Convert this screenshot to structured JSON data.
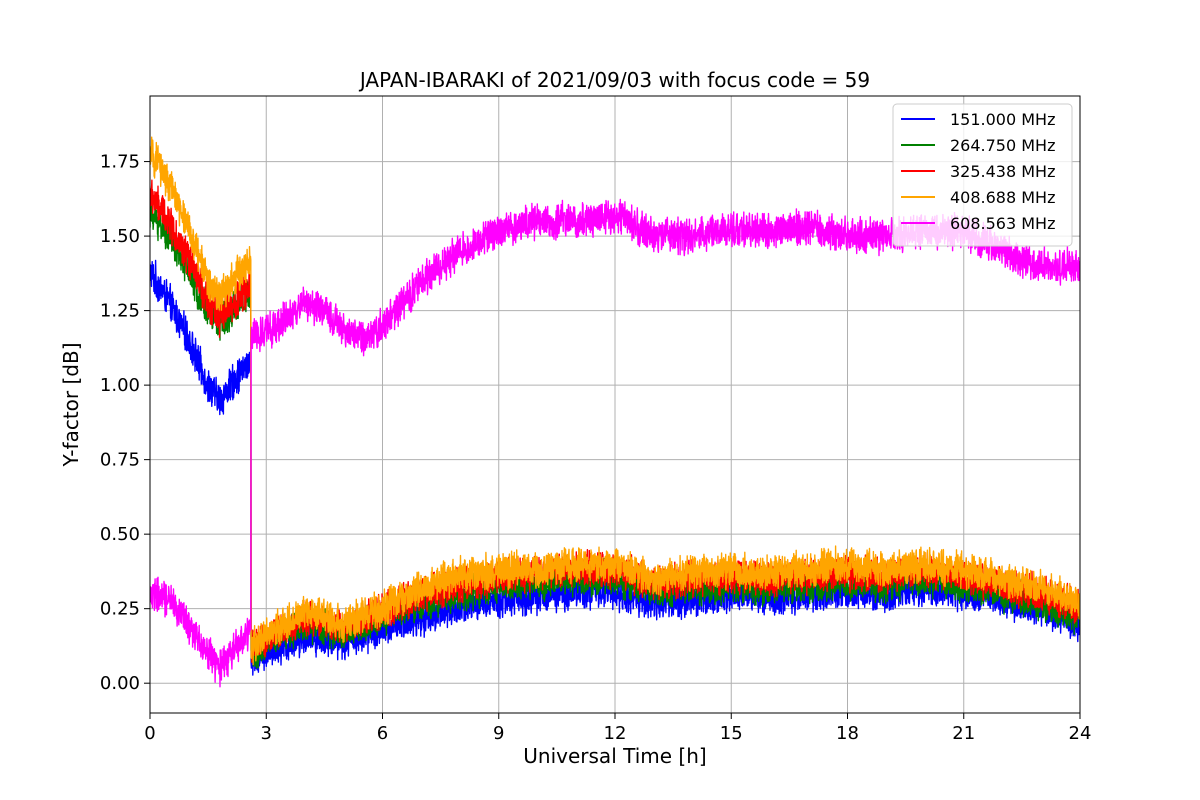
{
  "chart_data": {
    "type": "line",
    "title": "JAPAN-IBARAKI of 2021/09/03 with focus code = 59",
    "xlabel": "Universal Time [h]",
    "ylabel": "Y-factor [dB]",
    "xlim": [
      0,
      24
    ],
    "ylim": [
      -0.1,
      1.97
    ],
    "xticks": [
      0,
      3,
      6,
      9,
      12,
      15,
      18,
      21,
      24
    ],
    "xtick_labels": [
      "0",
      "3",
      "6",
      "9",
      "12",
      "15",
      "18",
      "21",
      "24"
    ],
    "yticks": [
      0.0,
      0.25,
      0.5,
      0.75,
      1.0,
      1.25,
      1.5,
      1.75
    ],
    "ytick_labels": [
      "0.00",
      "0.25",
      "0.50",
      "0.75",
      "1.00",
      "1.25",
      "1.50",
      "1.75"
    ],
    "grid": true,
    "legend_position": "top-right",
    "series": [
      {
        "name": "151.000 MHz",
        "color": "#0000ff",
        "noise": 0.05,
        "x": [
          0,
          0.5,
          1,
          1.5,
          1.8,
          2.2,
          2.6,
          2.61,
          3,
          4,
          5,
          6,
          7,
          8,
          9,
          10,
          11,
          12,
          13,
          14,
          15,
          16,
          17,
          18,
          19,
          20,
          21,
          22,
          23,
          24
        ],
        "y": [
          1.38,
          1.28,
          1.15,
          1.0,
          0.95,
          1.02,
          1.08,
          0.08,
          0.1,
          0.16,
          0.14,
          0.18,
          0.22,
          0.25,
          0.28,
          0.29,
          0.31,
          0.31,
          0.27,
          0.28,
          0.3,
          0.29,
          0.3,
          0.31,
          0.3,
          0.32,
          0.3,
          0.28,
          0.25,
          0.2
        ]
      },
      {
        "name": "264.750 MHz",
        "color": "#008000",
        "noise": 0.05,
        "x": [
          0,
          0.5,
          1,
          1.5,
          1.8,
          2.2,
          2.6,
          2.61,
          3,
          4,
          5,
          6,
          7,
          8,
          9,
          10,
          11,
          12,
          13,
          14,
          15,
          16,
          17,
          18,
          19,
          20,
          21,
          22,
          23,
          24
        ],
        "y": [
          1.58,
          1.5,
          1.38,
          1.25,
          1.2,
          1.27,
          1.3,
          0.1,
          0.13,
          0.2,
          0.17,
          0.22,
          0.27,
          0.3,
          0.33,
          0.34,
          0.35,
          0.35,
          0.31,
          0.32,
          0.33,
          0.32,
          0.33,
          0.34,
          0.33,
          0.35,
          0.33,
          0.3,
          0.27,
          0.22
        ]
      },
      {
        "name": "325.438 MHz",
        "color": "#ff0000",
        "noise": 0.05,
        "x": [
          0,
          0.5,
          1,
          1.5,
          1.8,
          2.2,
          2.6,
          2.61,
          3,
          4,
          5,
          6,
          7,
          8,
          9,
          10,
          11,
          12,
          13,
          14,
          15,
          16,
          17,
          18,
          19,
          20,
          21,
          22,
          23,
          24
        ],
        "y": [
          1.64,
          1.55,
          1.42,
          1.28,
          1.22,
          1.28,
          1.33,
          0.12,
          0.15,
          0.22,
          0.19,
          0.24,
          0.3,
          0.33,
          0.36,
          0.37,
          0.38,
          0.38,
          0.34,
          0.35,
          0.36,
          0.35,
          0.36,
          0.37,
          0.36,
          0.38,
          0.36,
          0.33,
          0.3,
          0.25
        ]
      },
      {
        "name": "408.688 MHz",
        "color": "#ffa500",
        "noise": 0.05,
        "x": [
          0,
          0.5,
          1,
          1.5,
          1.8,
          2.2,
          2.6,
          2.61,
          3,
          4,
          5,
          6,
          7,
          8,
          9,
          10,
          11,
          12,
          13,
          14,
          15,
          16,
          17,
          18,
          19,
          20,
          21,
          22,
          23,
          24
        ],
        "y": [
          1.78,
          1.68,
          1.52,
          1.35,
          1.3,
          1.37,
          1.42,
          0.12,
          0.16,
          0.24,
          0.2,
          0.25,
          0.32,
          0.36,
          0.38,
          0.38,
          0.4,
          0.4,
          0.35,
          0.37,
          0.38,
          0.37,
          0.38,
          0.4,
          0.38,
          0.4,
          0.38,
          0.35,
          0.32,
          0.27
        ]
      },
      {
        "name": "608.563 MHz",
        "color": "#ff00ff",
        "noise": 0.05,
        "x": [
          0,
          0.5,
          1,
          1.5,
          1.8,
          2.2,
          2.6,
          2.61,
          3,
          3.5,
          4,
          4.5,
          5,
          5.5,
          6,
          7,
          8,
          9,
          10,
          11,
          12,
          13,
          14,
          15,
          16,
          17,
          18,
          19,
          20,
          21,
          22,
          23,
          24
        ],
        "y": [
          0.3,
          0.28,
          0.2,
          0.1,
          0.05,
          0.12,
          0.18,
          1.16,
          1.18,
          1.22,
          1.28,
          1.25,
          1.18,
          1.16,
          1.2,
          1.35,
          1.45,
          1.52,
          1.55,
          1.55,
          1.57,
          1.5,
          1.5,
          1.52,
          1.52,
          1.53,
          1.5,
          1.5,
          1.52,
          1.52,
          1.45,
          1.4,
          1.4
        ]
      }
    ]
  }
}
